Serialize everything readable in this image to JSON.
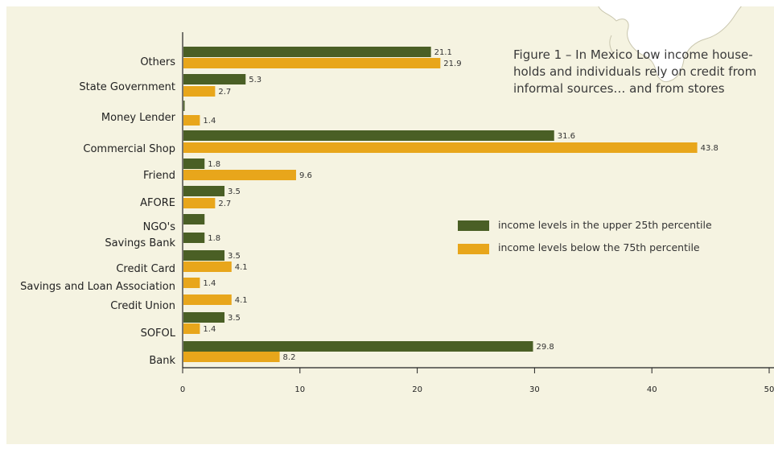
{
  "chart_data": {
    "type": "bar",
    "orientation": "horizontal",
    "title": "",
    "caption": [
      "Figure 1 – In Mexico Low income house-",
      "holds and individuals rely on credit from",
      "informal sources… and from stores"
    ],
    "xlabel": "",
    "ylabel": "",
    "xlim": [
      0,
      50
    ],
    "x_ticks": [
      "0",
      "10",
      "20",
      "30",
      "40",
      "50"
    ],
    "grid": false,
    "legend_position": "right-middle",
    "categories": [
      "Others",
      "State Government",
      "Money Lender",
      "Commercial Shop",
      "Friend",
      "AFORE",
      "NGO's",
      "Savings Bank",
      "Credit Card",
      "Savings and Loan Association",
      "Credit Union",
      "SOFOL",
      "Bank"
    ],
    "series": [
      {
        "name": "income levels in the upper 25th percentile",
        "color": "#4a5f25",
        "values": [
          21.1,
          5.3,
          0.1,
          31.6,
          1.8,
          3.5,
          1.8,
          1.8,
          3.5,
          null,
          null,
          3.5,
          29.8
        ],
        "labels": [
          "21.1",
          "5.3",
          "",
          "31.6",
          "1.8",
          "3.5",
          "",
          "1.8",
          "3.5",
          "",
          "",
          "3.5",
          "29.8"
        ]
      },
      {
        "name": "income levels below the 75th percentile",
        "color": "#e8a61b",
        "values": [
          21.9,
          2.7,
          1.4,
          43.8,
          9.6,
          2.7,
          null,
          null,
          4.1,
          1.4,
          4.1,
          1.4,
          8.2
        ],
        "labels": [
          "21.9",
          "2.7",
          "1.4",
          "43.8",
          "9.6",
          "2.7",
          "",
          "",
          "4.1",
          "1.4",
          "4.1",
          "1.4",
          "8.2"
        ]
      }
    ]
  }
}
